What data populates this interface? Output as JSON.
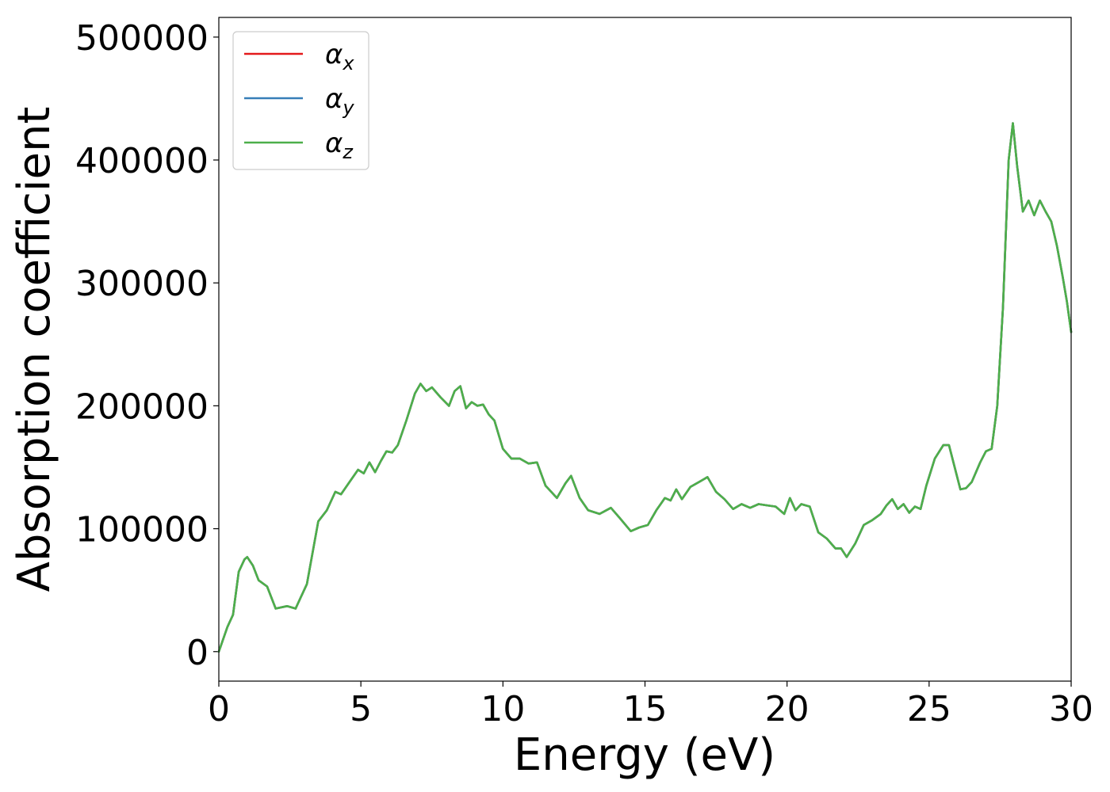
{
  "chart_data": {
    "type": "line",
    "xlabel": "Energy (eV)",
    "ylabel": "Absorption coefficient",
    "xlim": [
      0,
      30
    ],
    "ylim": [
      -24000,
      516000
    ],
    "x_ticks": [
      "0",
      "5",
      "10",
      "15",
      "20",
      "25",
      "30"
    ],
    "y_ticks": [
      "0",
      "100000",
      "200000",
      "300000",
      "400000",
      "500000"
    ],
    "grid": false,
    "legend_position": "upper left",
    "series": [
      {
        "name": "α_x",
        "label_main": "α",
        "label_sub": "x",
        "color": "#e41a1c"
      },
      {
        "name": "α_y",
        "label_main": "α",
        "label_sub": "y",
        "color": "#377eb8"
      },
      {
        "name": "α_z",
        "label_main": "α",
        "label_sub": "z",
        "color": "#4daf4a"
      }
    ],
    "x": [
      0,
      0.3,
      0.5,
      0.7,
      0.9,
      1.0,
      1.2,
      1.4,
      1.7,
      2.0,
      2.4,
      2.7,
      3.1,
      3.5,
      3.8,
      4.1,
      4.3,
      4.6,
      4.9,
      5.1,
      5.3,
      5.5,
      5.7,
      5.9,
      6.1,
      6.3,
      6.6,
      6.9,
      7.1,
      7.3,
      7.5,
      7.8,
      8.1,
      8.3,
      8.5,
      8.7,
      8.9,
      9.1,
      9.3,
      9.5,
      9.7,
      10.0,
      10.3,
      10.6,
      10.9,
      11.2,
      11.5,
      11.9,
      12.2,
      12.4,
      12.7,
      13.0,
      13.4,
      13.8,
      14.1,
      14.5,
      14.8,
      15.1,
      15.4,
      15.7,
      15.9,
      16.1,
      16.3,
      16.6,
      16.9,
      17.2,
      17.5,
      17.8,
      18.1,
      18.4,
      18.7,
      19.0,
      19.3,
      19.6,
      19.9,
      20.1,
      20.3,
      20.5,
      20.8,
      21.1,
      21.4,
      21.7,
      21.9,
      22.1,
      22.4,
      22.7,
      23.0,
      23.3,
      23.5,
      23.7,
      23.9,
      24.1,
      24.3,
      24.5,
      24.7,
      24.9,
      25.2,
      25.5,
      25.7,
      25.9,
      26.1,
      26.3,
      26.5,
      26.8,
      27.0,
      27.2,
      27.4,
      27.6,
      27.8,
      27.95,
      28.1,
      28.3,
      28.5,
      28.7,
      28.9,
      29.1,
      29.3,
      29.5,
      29.7,
      29.85,
      30.0
    ],
    "y": [
      0,
      20000,
      30000,
      65000,
      75000,
      77000,
      70000,
      58000,
      53000,
      35000,
      37000,
      35000,
      55000,
      106000,
      115000,
      130000,
      128000,
      138000,
      148000,
      145000,
      154000,
      146000,
      155000,
      163000,
      162000,
      168000,
      188000,
      210000,
      218000,
      212000,
      215000,
      207000,
      200000,
      212000,
      216000,
      198000,
      203000,
      200000,
      201000,
      193000,
      188000,
      165000,
      157000,
      157000,
      153000,
      154000,
      135000,
      125000,
      137000,
      143000,
      125000,
      115000,
      112000,
      117000,
      109000,
      98000,
      101000,
      103000,
      115000,
      125000,
      123000,
      132000,
      124000,
      134000,
      138000,
      142000,
      130000,
      124000,
      116000,
      120000,
      117000,
      120000,
      119000,
      118000,
      112000,
      125000,
      115000,
      120000,
      118000,
      97000,
      92000,
      84000,
      84000,
      77000,
      88000,
      103000,
      107000,
      112000,
      119000,
      124000,
      116000,
      120000,
      113000,
      118000,
      116000,
      135000,
      157000,
      168000,
      168000,
      150000,
      132000,
      133000,
      138000,
      154000,
      163000,
      165000,
      200000,
      280000,
      400000,
      430000,
      395000,
      358000,
      367000,
      355000,
      367000,
      358000,
      350000,
      330000,
      305000,
      285000,
      260000
    ]
  }
}
